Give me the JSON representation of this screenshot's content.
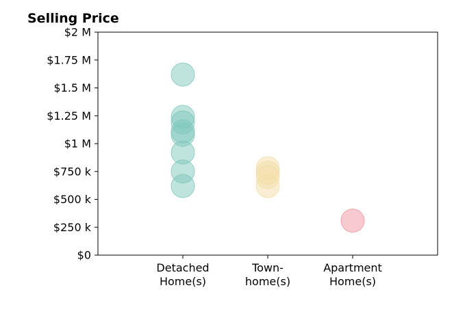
{
  "chart_data": {
    "type": "scatter",
    "title": "Selling Price",
    "xlabel": "",
    "ylabel": "",
    "categories": [
      {
        "lines": [
          "Detached",
          "Home(s)"
        ],
        "color": "#7fc8bc"
      },
      {
        "lines": [
          "Town-",
          "home(s)"
        ],
        "color": "#f3dea8"
      },
      {
        "lines": [
          "Apartment",
          "Home(s)"
        ],
        "color": "#f2949f"
      }
    ],
    "xlim": [
      -1,
      3
    ],
    "ylim": [
      0,
      2000000
    ],
    "yticks": [
      {
        "value": 0,
        "label": "$0"
      },
      {
        "value": 250000,
        "label": "$250 k"
      },
      {
        "value": 500000,
        "label": "$500 k"
      },
      {
        "value": 750000,
        "label": "$750 k"
      },
      {
        "value": 1000000,
        "label": "$1 M"
      },
      {
        "value": 1250000,
        "label": "$1.25 M"
      },
      {
        "value": 1500000,
        "label": "$1.5 M"
      },
      {
        "value": 1750000,
        "label": "$1.75 M"
      },
      {
        "value": 2000000,
        "label": "$2 M"
      }
    ],
    "points": [
      {
        "category": 0,
        "y": 1620000
      },
      {
        "category": 0,
        "y": 1240000
      },
      {
        "category": 0,
        "y": 1190000
      },
      {
        "category": 0,
        "y": 1110000
      },
      {
        "category": 0,
        "y": 1080000
      },
      {
        "category": 0,
        "y": 920000
      },
      {
        "category": 0,
        "y": 750000
      },
      {
        "category": 0,
        "y": 620000
      },
      {
        "category": 1,
        "y": 780000
      },
      {
        "category": 1,
        "y": 740000
      },
      {
        "category": 1,
        "y": 700000
      },
      {
        "category": 1,
        "y": 620000
      },
      {
        "category": 2,
        "y": 310000
      }
    ],
    "grid": false,
    "legend": "none"
  }
}
